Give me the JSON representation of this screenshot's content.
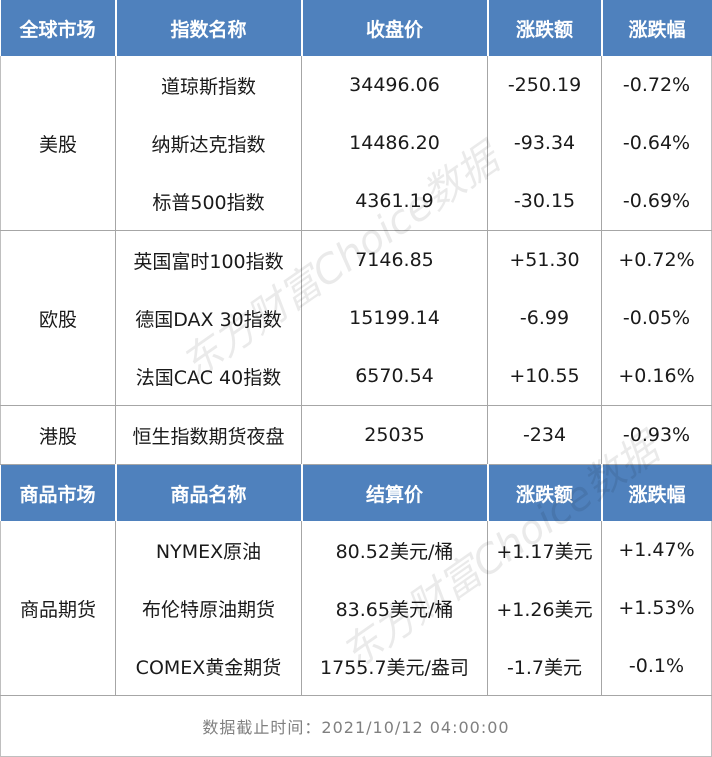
{
  "index_table": {
    "headers": [
      "全球市场",
      "指数名称",
      "收盘价",
      "涨跌额",
      "涨跌幅"
    ],
    "groups": [
      {
        "market": "美股",
        "rows": [
          {
            "name": "道琼斯指数",
            "close": "34496.06",
            "change": "-250.19",
            "pct": "-0.72%"
          },
          {
            "name": "纳斯达克指数",
            "close": "14486.20",
            "change": "-93.34",
            "pct": "-0.64%"
          },
          {
            "name": "标普500指数",
            "close": "4361.19",
            "change": "-30.15",
            "pct": "-0.69%"
          }
        ]
      },
      {
        "market": "欧股",
        "rows": [
          {
            "name": "英国富时100指数",
            "close": "7146.85",
            "change": "+51.30",
            "pct": "+0.72%"
          },
          {
            "name": "德国DAX 30指数",
            "close": "15199.14",
            "change": "-6.99",
            "pct": "-0.05%"
          },
          {
            "name": "法国CAC 40指数",
            "close": "6570.54",
            "change": "+10.55",
            "pct": "+0.16%"
          }
        ]
      },
      {
        "market": "港股",
        "rows": [
          {
            "name": "恒生指数期货夜盘",
            "close": "25035",
            "change": "-234",
            "pct": "-0.93%"
          }
        ]
      }
    ]
  },
  "commodity_table": {
    "headers": [
      "商品市场",
      "商品名称",
      "结算价",
      "涨跌额",
      "涨跌幅"
    ],
    "groups": [
      {
        "market": "商品期货",
        "rows": [
          {
            "name": "NYMEX原油",
            "close": "80.52美元/桶",
            "change": "+1.17美元",
            "pct": "+1.47%"
          },
          {
            "name": "布伦特原油期货",
            "close": "83.65美元/桶",
            "change": "+1.26美元",
            "pct": "+1.53%"
          },
          {
            "name": "COMEX黄金期货",
            "close": "1755.7美元/盎司",
            "change": "-1.7美元",
            "pct": "-0.1%"
          }
        ]
      }
    ]
  },
  "footer": {
    "text": "数据截止时间：2021/10/12 04:00:00"
  },
  "watermark": "东方财富Choice数据"
}
